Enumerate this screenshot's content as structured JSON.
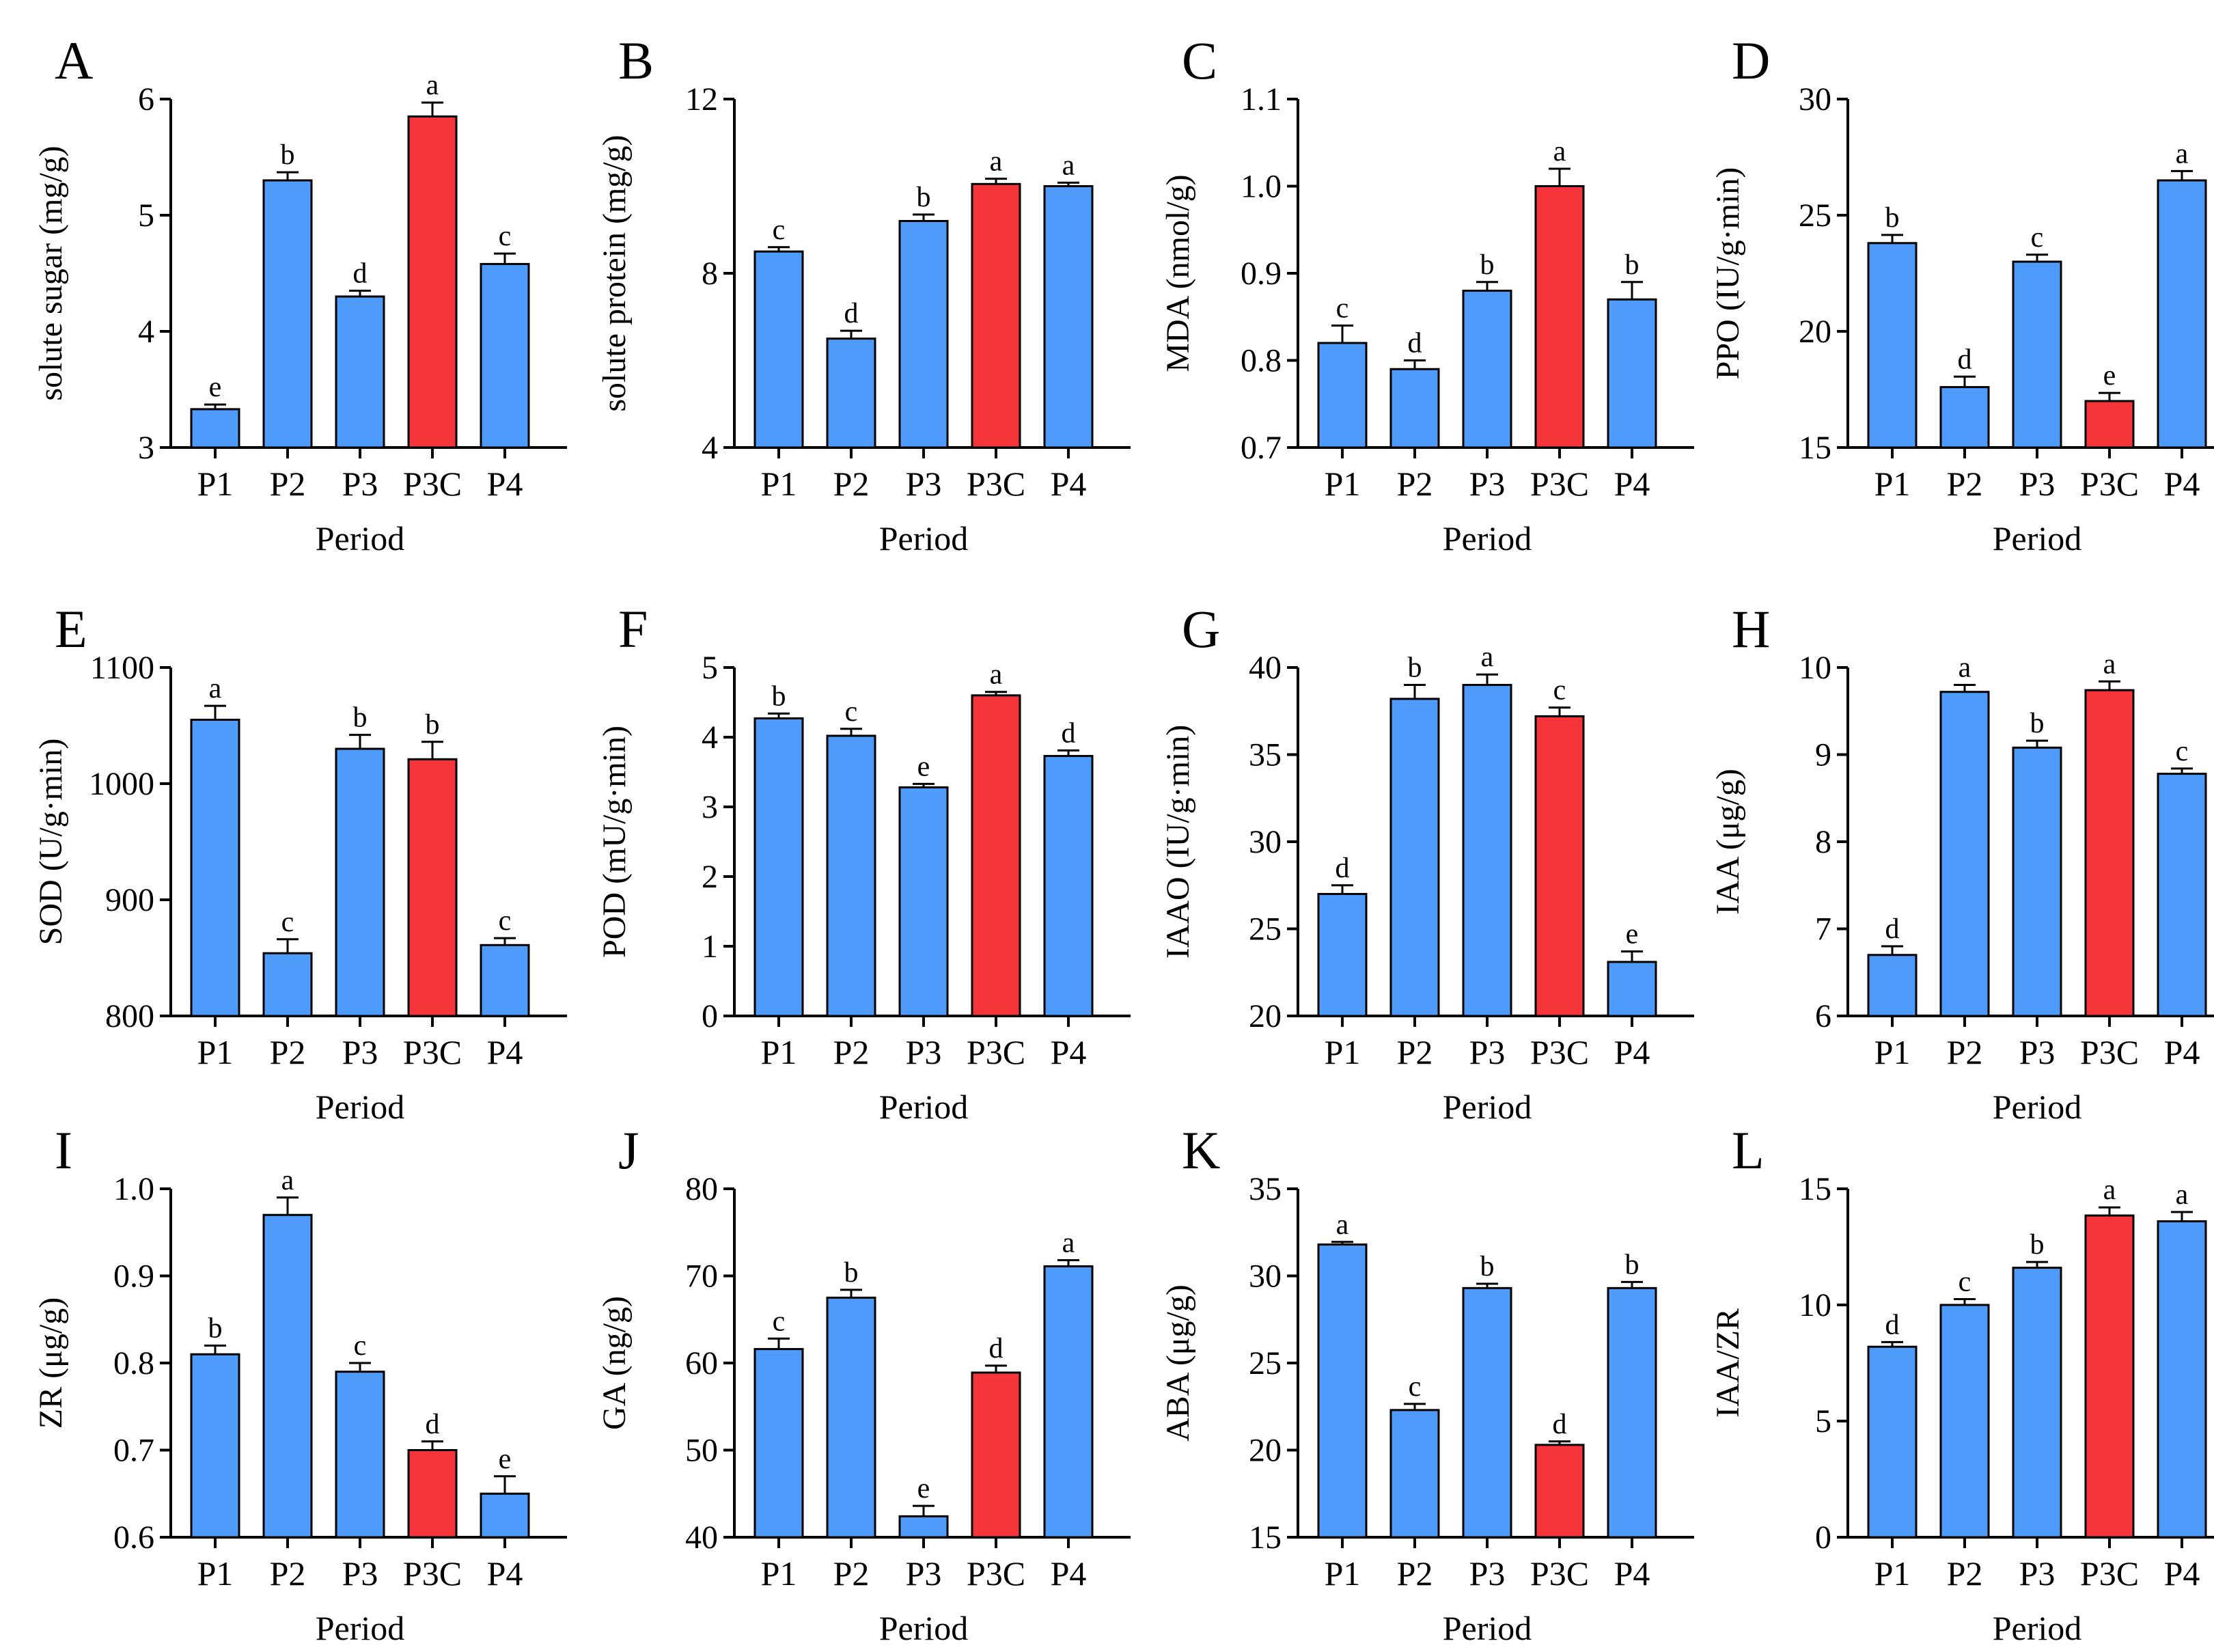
{
  "colors": {
    "blue": "#4F9BFB",
    "red": "#F5353A",
    "axis": "#000000"
  },
  "chart_data": [
    {
      "panel": "A",
      "type": "bar",
      "categories": [
        "P1",
        "P2",
        "P3",
        "P3C",
        "P4"
      ],
      "values": [
        3.33,
        5.3,
        4.3,
        5.85,
        4.58
      ],
      "errors": [
        0.04,
        0.07,
        0.05,
        0.12,
        0.09
      ],
      "letters": [
        "e",
        "b",
        "d",
        "a",
        "c"
      ],
      "highlight": [
        3
      ],
      "ylabel": "solute sugar (mg/g)",
      "xlabel": "Period",
      "ylim": [
        3,
        6
      ],
      "yticks": [
        3,
        4,
        5,
        6
      ],
      "ytick_labels": [
        "3",
        "4",
        "5",
        "6"
      ]
    },
    {
      "panel": "B",
      "type": "bar",
      "categories": [
        "P1",
        "P2",
        "P3",
        "P3C",
        "P4"
      ],
      "values": [
        8.5,
        6.5,
        9.2,
        10.05,
        10.0
      ],
      "errors": [
        0.1,
        0.18,
        0.15,
        0.12,
        0.08
      ],
      "letters": [
        "c",
        "d",
        "b",
        "a",
        "a"
      ],
      "highlight": [
        3
      ],
      "ylabel": "solute protein (mg/g)",
      "xlabel": "Period",
      "ylim": [
        4,
        12
      ],
      "yticks": [
        4,
        8,
        12
      ],
      "ytick_labels": [
        "4",
        "8",
        "12"
      ]
    },
    {
      "panel": "C",
      "type": "bar",
      "categories": [
        "P1",
        "P2",
        "P3",
        "P3C",
        "P4"
      ],
      "values": [
        0.82,
        0.79,
        0.88,
        1.0,
        0.87
      ],
      "errors": [
        0.02,
        0.01,
        0.01,
        0.02,
        0.02
      ],
      "letters": [
        "c",
        "d",
        "b",
        "a",
        "b"
      ],
      "highlight": [
        3
      ],
      "ylabel": "MDA (nmol/g)",
      "xlabel": "Period",
      "ylim": [
        0.7,
        1.1
      ],
      "yticks": [
        0.7,
        0.8,
        0.9,
        1.0,
        1.1
      ],
      "ytick_labels": [
        "0.7",
        "0.8",
        "0.9",
        "1.0",
        "1.1"
      ]
    },
    {
      "panel": "D",
      "type": "bar",
      "categories": [
        "P1",
        "P2",
        "P3",
        "P3C",
        "P4"
      ],
      "values": [
        23.8,
        17.6,
        23.0,
        17.0,
        26.5
      ],
      "errors": [
        0.35,
        0.45,
        0.3,
        0.35,
        0.4
      ],
      "letters": [
        "b",
        "d",
        "c",
        "e",
        "a"
      ],
      "highlight": [
        3
      ],
      "ylabel": "PPO (IU/g·min)",
      "xlabel": "Period",
      "ylim": [
        15,
        30
      ],
      "yticks": [
        15,
        20,
        25,
        30
      ],
      "ytick_labels": [
        "15",
        "20",
        "25",
        "30"
      ]
    },
    {
      "panel": "E",
      "type": "bar",
      "categories": [
        "P1",
        "P2",
        "P3",
        "P3C",
        "P4"
      ],
      "values": [
        1055,
        854,
        1030,
        1021,
        861
      ],
      "errors": [
        12,
        12,
        12,
        15,
        6
      ],
      "letters": [
        "a",
        "c",
        "b",
        "b",
        "c"
      ],
      "highlight": [
        3
      ],
      "ylabel": "SOD (U/g·min)",
      "xlabel": "Period",
      "ylim": [
        800,
        1100
      ],
      "yticks": [
        800,
        900,
        1000,
        1100
      ],
      "ytick_labels": [
        "800",
        "900",
        "1000",
        "1100"
      ]
    },
    {
      "panel": "F",
      "type": "bar",
      "categories": [
        "P1",
        "P2",
        "P3",
        "P3C",
        "P4"
      ],
      "values": [
        4.27,
        4.02,
        3.28,
        4.6,
        3.73
      ],
      "errors": [
        0.07,
        0.1,
        0.05,
        0.05,
        0.08
      ],
      "letters": [
        "b",
        "c",
        "e",
        "a",
        "d"
      ],
      "highlight": [
        3
      ],
      "ylabel": "POD (mU/g·min)",
      "xlabel": "Period",
      "ylim": [
        0,
        5
      ],
      "yticks": [
        0,
        1,
        2,
        3,
        4,
        5
      ],
      "ytick_labels": [
        "0",
        "1",
        "2",
        "3",
        "4",
        "5"
      ]
    },
    {
      "panel": "G",
      "type": "bar",
      "categories": [
        "P1",
        "P2",
        "P3",
        "P3C",
        "P4"
      ],
      "values": [
        27.0,
        38.2,
        39.0,
        37.2,
        23.1
      ],
      "errors": [
        0.5,
        0.8,
        0.6,
        0.5,
        0.6
      ],
      "letters": [
        "d",
        "b",
        "a",
        "c",
        "e"
      ],
      "highlight": [
        3
      ],
      "ylabel": "IAAO (IU/g·min)",
      "xlabel": "Period",
      "ylim": [
        20,
        40
      ],
      "yticks": [
        20,
        25,
        30,
        35,
        40
      ],
      "ytick_labels": [
        "20",
        "25",
        "30",
        "35",
        "40"
      ]
    },
    {
      "panel": "H",
      "type": "bar",
      "categories": [
        "P1",
        "P2",
        "P3",
        "P3C",
        "P4"
      ],
      "values": [
        6.7,
        9.72,
        9.08,
        9.74,
        8.78
      ],
      "errors": [
        0.1,
        0.08,
        0.08,
        0.1,
        0.06
      ],
      "letters": [
        "d",
        "a",
        "b",
        "a",
        "c"
      ],
      "highlight": [
        3
      ],
      "ylabel": "IAA (μg/g)",
      "xlabel": "Period",
      "ylim": [
        6,
        10
      ],
      "yticks": [
        6,
        7,
        8,
        9,
        10
      ],
      "ytick_labels": [
        "6",
        "7",
        "8",
        "9",
        "10"
      ]
    },
    {
      "panel": "I",
      "type": "bar",
      "categories": [
        "P1",
        "P2",
        "P3",
        "P3C",
        "P4"
      ],
      "values": [
        0.81,
        0.97,
        0.79,
        0.7,
        0.65
      ],
      "errors": [
        0.01,
        0.02,
        0.01,
        0.01,
        0.02
      ],
      "letters": [
        "b",
        "a",
        "c",
        "d",
        "e"
      ],
      "highlight": [
        3
      ],
      "ylabel": "ZR (μg/g)",
      "xlabel": "Period",
      "ylim": [
        0.6,
        1.0
      ],
      "yticks": [
        0.6,
        0.7,
        0.8,
        0.9,
        1.0
      ],
      "ytick_labels": [
        "0.6",
        "0.7",
        "0.8",
        "0.9",
        "1.0"
      ]
    },
    {
      "panel": "J",
      "type": "bar",
      "categories": [
        "P1",
        "P2",
        "P3",
        "P3C",
        "P4"
      ],
      "values": [
        61.6,
        67.5,
        42.4,
        58.9,
        71.1
      ],
      "errors": [
        1.2,
        0.9,
        1.2,
        0.8,
        0.7
      ],
      "letters": [
        "c",
        "b",
        "e",
        "d",
        "a"
      ],
      "highlight": [
        3
      ],
      "ylabel": "GA (ng/g)",
      "xlabel": "Period",
      "ylim": [
        40,
        80
      ],
      "yticks": [
        40,
        50,
        60,
        70,
        80
      ],
      "ytick_labels": [
        "40",
        "50",
        "60",
        "70",
        "80"
      ]
    },
    {
      "panel": "K",
      "type": "bar",
      "categories": [
        "P1",
        "P2",
        "P3",
        "P3C",
        "P4"
      ],
      "values": [
        31.8,
        22.3,
        29.3,
        20.3,
        29.3
      ],
      "errors": [
        0.15,
        0.35,
        0.25,
        0.2,
        0.35
      ],
      "letters": [
        "a",
        "c",
        "b",
        "d",
        "b"
      ],
      "highlight": [
        3
      ],
      "ylabel": "ABA (μg/g)",
      "xlabel": "Period",
      "ylim": [
        15,
        35
      ],
      "yticks": [
        15,
        20,
        25,
        30,
        35
      ],
      "ytick_labels": [
        "15",
        "20",
        "25",
        "30",
        "35"
      ]
    },
    {
      "panel": "L",
      "type": "bar",
      "categories": [
        "P1",
        "P2",
        "P3",
        "P3C",
        "P4"
      ],
      "values": [
        8.2,
        10.0,
        11.6,
        13.85,
        13.6
      ],
      "errors": [
        0.2,
        0.25,
        0.25,
        0.35,
        0.4
      ],
      "letters": [
        "d",
        "c",
        "b",
        "a",
        "a"
      ],
      "highlight": [
        3
      ],
      "ylabel": "IAA/ZR",
      "xlabel": "Period",
      "ylim": [
        0,
        15
      ],
      "yticks": [
        0,
        5,
        10,
        15
      ],
      "ytick_labels": [
        "0",
        "5",
        "10",
        "15"
      ]
    }
  ]
}
